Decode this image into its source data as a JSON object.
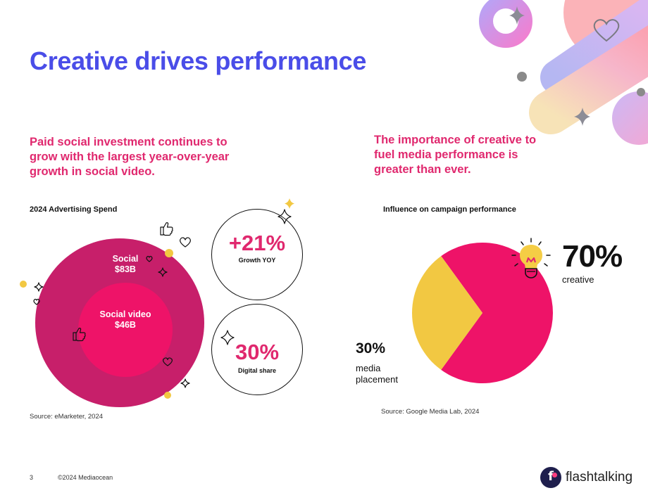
{
  "slide": {
    "title": "Creative drives performance",
    "page_number": "3",
    "copyright": "©2024 Mediaocean"
  },
  "left": {
    "subtitle": "Paid social investment continues to grow with the largest year-over-year growth in social video.",
    "chart_title": "2024 Advertising Spend",
    "social_label": "Social",
    "social_value": "$83B",
    "social_video_label": "Social video",
    "social_video_value": "$46B",
    "growth_value": "+21%",
    "growth_caption": "Growth YOY",
    "share_value": "30%",
    "share_caption": "Digital share",
    "source": "Source: eMarketer, 2024"
  },
  "right": {
    "subtitle": "The importance of creative to fuel media performance is greater than ever.",
    "chart_title": "Influence on campaign performance",
    "creative_value": "70%",
    "creative_label": "creative",
    "media_value": "30%",
    "media_label_line1": "media",
    "media_label_line2": "placement",
    "source": "Source: Google Media Lab, 2024"
  },
  "brand": {
    "name": "flashtalking",
    "logo_letter": "f"
  },
  "colors": {
    "title": "#4a4de8",
    "accent": "#e0286e",
    "social_outer": "#c71f6a",
    "social_inner": "#ee1368",
    "pie_creative": "#ee1368",
    "pie_media": "#f2c842"
  },
  "chart_data": [
    {
      "type": "bubble",
      "title": "2024 Advertising Spend",
      "series": [
        {
          "name": "Social",
          "value": 83,
          "unit": "$B"
        },
        {
          "name": "Social video",
          "value": 46,
          "unit": "$B"
        }
      ],
      "annotations": [
        {
          "value": "+21%",
          "label": "Growth YOY"
        },
        {
          "value": "30%",
          "label": "Digital share"
        }
      ]
    },
    {
      "type": "pie",
      "title": "Influence on campaign performance",
      "categories": [
        "creative",
        "media placement"
      ],
      "values": [
        70,
        30
      ]
    }
  ]
}
